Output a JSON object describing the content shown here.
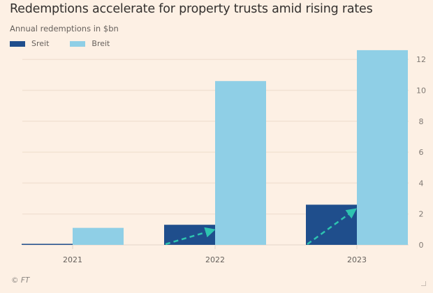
{
  "chart_data": {
    "type": "bar",
    "title": "Redemptions accelerate for property trusts amid rising rates",
    "subtitle": "Annual redemptions in $bn",
    "categories": [
      "2021",
      "2022",
      "2023"
    ],
    "series": [
      {
        "name": "Sreit",
        "color": "#1f4e8c",
        "values": [
          0.05,
          1.3,
          2.6
        ]
      },
      {
        "name": "Breit",
        "color": "#8fcfe6",
        "values": [
          1.1,
          10.6,
          12.6
        ]
      }
    ],
    "yticks": [
      0,
      2,
      4,
      6,
      8,
      10,
      12
    ],
    "ylim": [
      0,
      12.6
    ],
    "xlabel": "",
    "ylabel": "",
    "y_axis_side": "right",
    "grid": true,
    "legend_position": "top-left",
    "annotations": [
      {
        "type": "dashed-arrow",
        "color": "#2ec4b0",
        "target_series": "Sreit",
        "categories": [
          "2022",
          "2023"
        ]
      }
    ],
    "source": "© FT"
  }
}
